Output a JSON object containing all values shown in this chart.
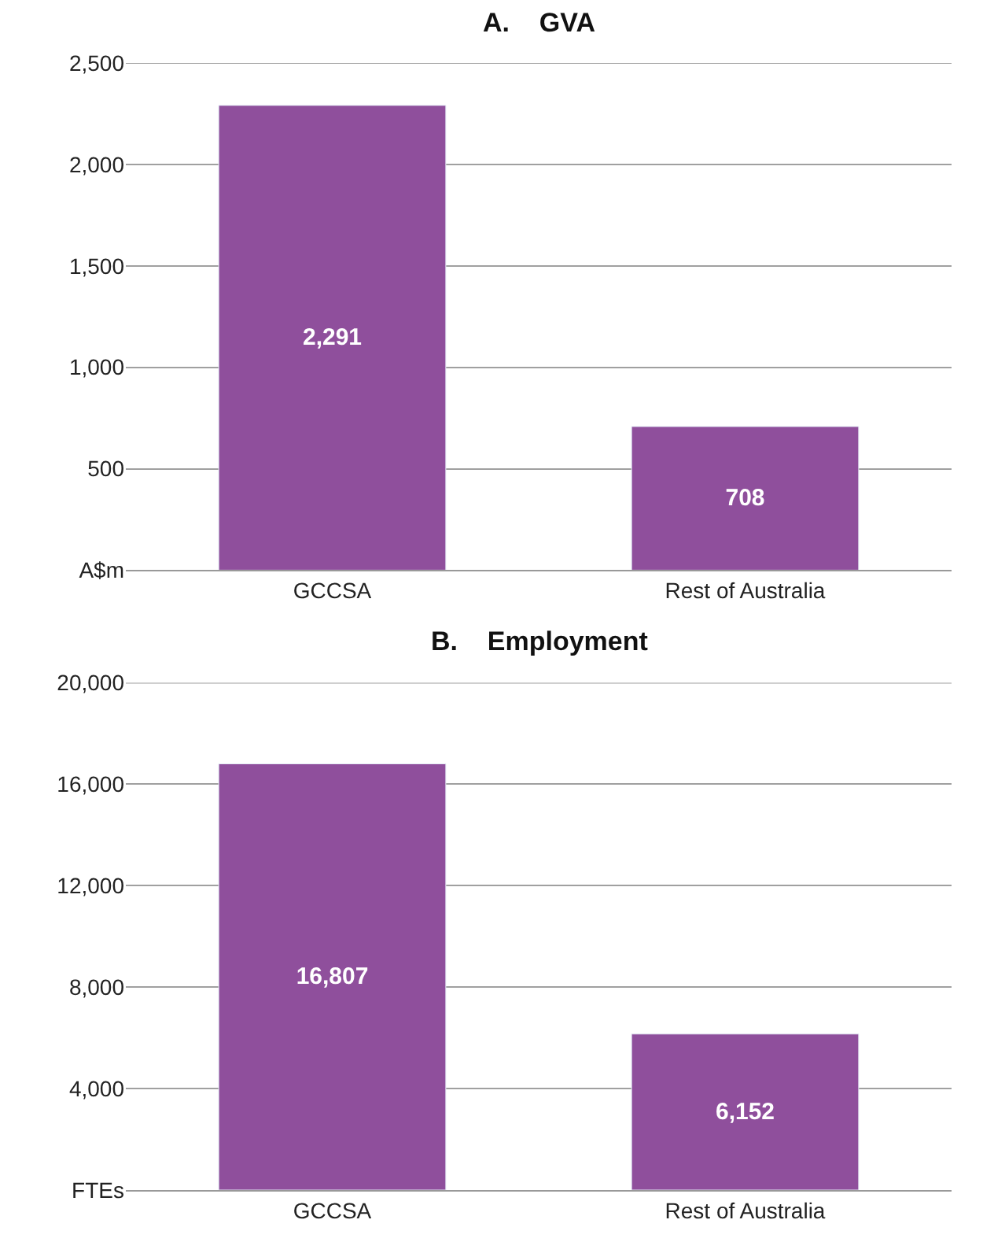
{
  "chart_data": [
    {
      "type": "bar",
      "title": "A.    GVA",
      "categories": [
        "GCCSA",
        "Rest of Australia"
      ],
      "values": [
        2291,
        708
      ],
      "value_labels": [
        "2,291",
        "708"
      ],
      "color": "#8f4f9c",
      "ylim": [
        0,
        2500
      ],
      "yticks": [
        {
          "value": 0,
          "label": "A$m"
        },
        {
          "value": 500,
          "label": "500"
        },
        {
          "value": 1000,
          "label": "1,000"
        },
        {
          "value": 1500,
          "label": "1,500"
        },
        {
          "value": 2000,
          "label": "2,000"
        },
        {
          "value": 2500,
          "label": "2,500"
        }
      ],
      "grid": "y"
    },
    {
      "type": "bar",
      "title": "B.    Employment",
      "categories": [
        "GCCSA",
        "Rest of Australia"
      ],
      "values": [
        16807,
        6152
      ],
      "value_labels": [
        "16,807",
        "6,152"
      ],
      "color": "#8f4f9c",
      "ylim": [
        0,
        20000
      ],
      "yticks": [
        {
          "value": 0,
          "label": "FTEs"
        },
        {
          "value": 4000,
          "label": "4,000"
        },
        {
          "value": 8000,
          "label": "8,000"
        },
        {
          "value": 12000,
          "label": "12,000"
        },
        {
          "value": 16000,
          "label": "16,000"
        },
        {
          "value": 20000,
          "label": "20,000"
        }
      ],
      "grid": "y"
    }
  ]
}
